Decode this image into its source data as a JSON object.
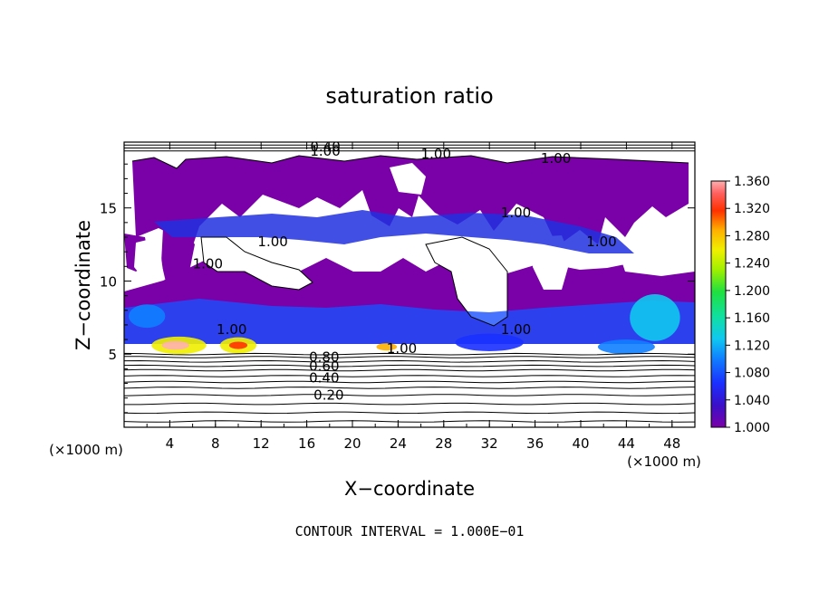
{
  "chart_data": {
    "type": "heatmap",
    "title": "saturation ratio",
    "xlabel": "X−coordinate",
    "ylabel": "Z−coordinate",
    "x_unit": "(×1000 m)",
    "y_unit": "(×1000 m)",
    "xlim": [
      0,
      50
    ],
    "ylim": [
      0,
      19.5
    ],
    "x_ticks": [
      4,
      8,
      12,
      16,
      20,
      24,
      28,
      32,
      36,
      40,
      44,
      48
    ],
    "y_ticks": [
      5,
      10,
      15
    ],
    "colorbar": {
      "min": 1.0,
      "max": 1.36,
      "labels": [
        "1.360",
        "1.320",
        "1.280",
        "1.240",
        "1.200",
        "1.160",
        "1.120",
        "1.080",
        "1.040",
        "1.000"
      ]
    },
    "contour_interval_text": "CONTOUR INTERVAL = 1.000E−01",
    "contour_labels": [
      {
        "text": "0.20",
        "x": 16.6,
        "z": 2.0
      },
      {
        "text": "0.40",
        "x": 16.2,
        "z": 3.2
      },
      {
        "text": "0.60",
        "x": 16.2,
        "z": 4.0
      },
      {
        "text": "0.80",
        "x": 16.2,
        "z": 4.6
      },
      {
        "text": "1.00",
        "x": 8.1,
        "z": 6.5
      },
      {
        "text": "1.00",
        "x": 23.0,
        "z": 5.2
      },
      {
        "text": "1.00",
        "x": 11.7,
        "z": 12.5
      },
      {
        "text": "1.00",
        "x": 6.0,
        "z": 11.0
      },
      {
        "text": "1.00",
        "x": 26.0,
        "z": 18.5
      },
      {
        "text": "1.00",
        "x": 36.5,
        "z": 18.2
      },
      {
        "text": "1.00",
        "x": 33.0,
        "z": 14.5
      },
      {
        "text": "1.00",
        "x": 40.5,
        "z": 12.5
      },
      {
        "text": "1.00",
        "x": 33.0,
        "z": 6.5
      },
      {
        "text": "0.40",
        "x": 16.3,
        "z": 19.0
      },
      {
        "text": "1.00",
        "x": 16.3,
        "z": 18.7
      }
    ],
    "features": [
      {
        "shape": "band",
        "zmin": 5.2,
        "zmax": 9.5,
        "value": 1.06
      },
      {
        "shape": "band",
        "zmin": 9.5,
        "zmax": 16.5,
        "value": 1.02
      },
      {
        "shape": "blob",
        "x": 4.8,
        "z": 5.6,
        "rx": 2.4,
        "rz": 0.6,
        "value": 1.28
      },
      {
        "shape": "blob",
        "x": 10.0,
        "z": 5.6,
        "rx": 1.6,
        "rz": 0.55,
        "value": 1.26
      },
      {
        "shape": "blob",
        "x": 4.5,
        "z": 5.6,
        "rx": 1.2,
        "rz": 0.3,
        "value": 1.36
      },
      {
        "shape": "blob",
        "x": 10.0,
        "z": 5.6,
        "rx": 0.8,
        "rz": 0.25,
        "value": 1.34
      },
      {
        "shape": "blob",
        "x": 23.0,
        "z": 5.5,
        "rx": 0.9,
        "rz": 0.25,
        "value": 1.3
      },
      {
        "shape": "blob",
        "x": 44.0,
        "z": 5.5,
        "rx": 2.5,
        "rz": 0.5,
        "value": 1.12
      },
      {
        "shape": "blob",
        "x": 2.0,
        "z": 7.6,
        "rx": 1.6,
        "rz": 0.8,
        "value": 1.12
      },
      {
        "shape": "blob",
        "x": 46.5,
        "z": 7.5,
        "rx": 2.2,
        "rz": 1.6,
        "value": 1.14
      },
      {
        "shape": "blob",
        "x": 32.0,
        "z": 5.8,
        "rx": 3.0,
        "rz": 0.6,
        "value": 1.09
      }
    ]
  }
}
